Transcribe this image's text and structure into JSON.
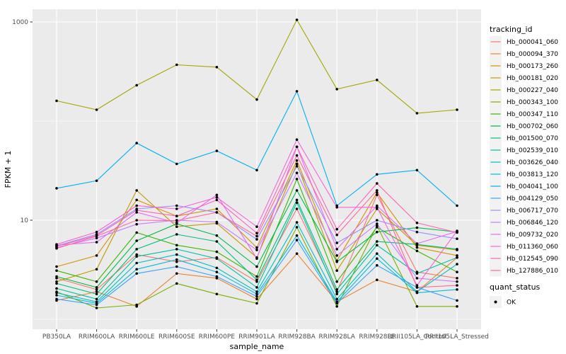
{
  "figure": {
    "background": "#FFFFFF",
    "panel_background": "#EBEBEB",
    "grid_color": "#FFFFFF",
    "point_color": "#000000",
    "tick_color": "#333333",
    "axis_text_color": "#4D4D4D",
    "legend_key_background": "#F2F2F2"
  },
  "chart_data": {
    "type": "line",
    "title": "",
    "xlabel": "sample_name",
    "ylabel": "FPKM + 1",
    "y_scale": "log10",
    "ylim": [
      0.79,
      1350
    ],
    "y_breaks": [
      10,
      1000
    ],
    "y_break_labels": [
      "10",
      "1000"
    ],
    "y_minor_breaks": [
      1,
      100
    ],
    "grid": "on",
    "legend_position": "right",
    "point_shape": "filled-circle",
    "categories": [
      "PB350LA",
      "RRIM600LA",
      "RRIM600LE",
      "RRIM600SE",
      "RRIM600PE",
      "RRIM901LA",
      "RRIM928BA",
      "RRIM928LA",
      "RRIM928LE",
      "RRII105LA_Control",
      "RRII105LA_Stressed"
    ],
    "series": [
      {
        "name": "Hb_000041_060",
        "color": "#F8766D",
        "values": [
          2.6,
          2.0,
          4.5,
          3.8,
          4.2,
          2.4,
          13,
          1.9,
          18,
          3.0,
          2.6
        ]
      },
      {
        "name": "Hb_000094_370",
        "color": "#EA8331",
        "values": [
          1.55,
          1.9,
          1.35,
          2.9,
          2.6,
          1.6,
          4.6,
          1.5,
          2.5,
          1.9,
          4.2
        ]
      },
      {
        "name": "Hb_000173_260",
        "color": "#D89000",
        "values": [
          3.4,
          4.4,
          16,
          11,
          13,
          5.3,
          40,
          3.9,
          19,
          5.3,
          4.4
        ]
      },
      {
        "name": "Hb_000181_020",
        "color": "#C09B00",
        "values": [
          2.4,
          3.2,
          20,
          8.6,
          9.3,
          4.2,
          37,
          3.1,
          13,
          5.6,
          5.0
        ]
      },
      {
        "name": "Hb_000227_040",
        "color": "#A3A500",
        "values": [
          160,
          130,
          230,
          370,
          350,
          165,
          1050,
          210,
          260,
          120,
          130
        ]
      },
      {
        "name": "Hb_000343_100",
        "color": "#7CAE00",
        "values": [
          1.9,
          1.3,
          1.4,
          2.3,
          1.8,
          1.45,
          8.5,
          1.35,
          8.8,
          1.35,
          1.35
        ]
      },
      {
        "name": "Hb_000347_110",
        "color": "#39B600",
        "values": [
          3.1,
          2.4,
          7.5,
          5.6,
          4.8,
          2.7,
          26,
          2.4,
          8.5,
          4.9,
          3.0
        ]
      },
      {
        "name": "Hb_000702_060",
        "color": "#00BB4E",
        "values": [
          2.7,
          2.1,
          6.2,
          9.2,
          7.0,
          3.4,
          20,
          3.8,
          7.6,
          8.4,
          7.6
        ]
      },
      {
        "name": "Hb_001500_070",
        "color": "#00BF7D",
        "values": [
          2.3,
          1.8,
          5.1,
          7.2,
          6.1,
          2.5,
          16,
          2.0,
          6.1,
          5.7,
          5.1
        ]
      },
      {
        "name": "Hb_002539_010",
        "color": "#00C1A3",
        "values": [
          2.05,
          1.6,
          4.3,
          5.1,
          4.1,
          2.1,
          15,
          1.8,
          5.6,
          2.9,
          4.2
        ]
      },
      {
        "name": "Hb_003626_040",
        "color": "#00BFC4",
        "values": [
          1.85,
          1.5,
          3.7,
          4.5,
          3.3,
          1.9,
          9.5,
          1.6,
          4.6,
          1.9,
          3.6
        ]
      },
      {
        "name": "Hb_003813_120",
        "color": "#00BAE0",
        "values": [
          1.75,
          1.45,
          3.2,
          4.0,
          3.0,
          1.8,
          7.0,
          1.5,
          4.1,
          1.85,
          2.0
        ]
      },
      {
        "name": "Hb_004041_100",
        "color": "#00B0F6",
        "values": [
          21,
          25,
          60,
          37,
          50,
          32,
          200,
          14,
          29,
          32,
          14
        ]
      },
      {
        "name": "Hb_004129_050",
        "color": "#35A2FF",
        "values": [
          1.6,
          1.4,
          2.9,
          3.4,
          2.7,
          1.7,
          6.3,
          1.45,
          3.5,
          2.1,
          1.55
        ]
      },
      {
        "name": "Hb_006717_070",
        "color": "#9590FF",
        "values": [
          5.5,
          7.2,
          13,
          14,
          12,
          6.4,
          35,
          5.9,
          10,
          7.6,
          6.5
        ]
      },
      {
        "name": "Hb_006846_120",
        "color": "#C77CFF",
        "values": [
          5.3,
          6.6,
          9.1,
          10,
          9.6,
          5.0,
          30,
          4.4,
          9.2,
          2.6,
          2.4
        ]
      },
      {
        "name": "Hb_009732_020",
        "color": "#E76BF3",
        "values": [
          5.6,
          6.0,
          12,
          9.4,
          18,
          4.1,
          55,
          5.1,
          14,
          5.8,
          7.7
        ]
      },
      {
        "name": "Hb_011360_060",
        "color": "#FA62DB",
        "values": [
          5.7,
          7.6,
          14,
          13,
          17,
          8.6,
          65,
          13.5,
          13.5,
          2.2,
          7.8
        ]
      },
      {
        "name": "Hb_012545_090",
        "color": "#FF62BC",
        "values": [
          5.45,
          7.0,
          12.6,
          11,
          16,
          7.4,
          55,
          8.1,
          23.5,
          9.4,
          7.5
        ]
      },
      {
        "name": "Hb_127886_010",
        "color": "#FF6A98",
        "values": [
          5.2,
          6.9,
          10,
          9.9,
          12,
          6.9,
          45,
          7.1,
          20,
          2.1,
          2.2
        ]
      }
    ],
    "legend": {
      "color_title": "tracking_id",
      "shape_title": "quant_status",
      "shape_entries": [
        {
          "label": "OK"
        }
      ]
    }
  }
}
